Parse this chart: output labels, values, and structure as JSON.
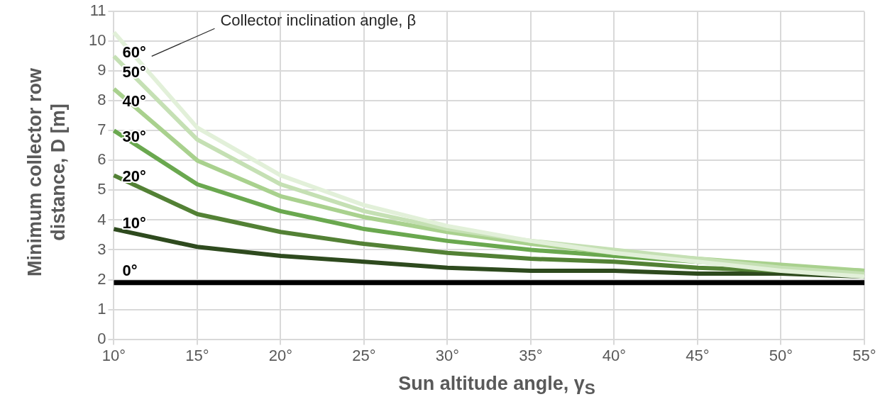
{
  "chart_data": {
    "type": "line",
    "xlabel": "Sun altitude angle, γ$_{S}$",
    "ylabel": "Minimum collector row distance, D [m]",
    "categories": [
      "10°",
      "15°",
      "20°",
      "25°",
      "30°",
      "35°",
      "40°",
      "45°",
      "50°",
      "55°"
    ],
    "ylim": [
      0,
      11
    ],
    "yticks": [
      0,
      1,
      2,
      3,
      4,
      5,
      6,
      7,
      8,
      9,
      10,
      11
    ],
    "grid": true,
    "legend": false,
    "marker": "none",
    "line_style": "solid",
    "annotations": [
      "Collector inclination angle, β"
    ],
    "series": [
      {
        "name": "0°",
        "color": "#000000",
        "values": [
          1.9,
          1.9,
          1.9,
          1.9,
          1.9,
          1.9,
          1.9,
          1.9,
          1.9,
          1.9
        ]
      },
      {
        "name": "10°",
        "color": "#2e4a1e",
        "values": [
          3.7,
          3.1,
          2.8,
          2.6,
          2.4,
          2.3,
          2.3,
          2.2,
          2.2,
          2.1
        ]
      },
      {
        "name": "20°",
        "color": "#538135",
        "values": [
          5.5,
          4.2,
          3.6,
          3.2,
          2.9,
          2.7,
          2.6,
          2.4,
          2.3,
          2.2
        ]
      },
      {
        "name": "30°",
        "color": "#6aa84f",
        "values": [
          7.0,
          5.2,
          4.3,
          3.7,
          3.3,
          3.0,
          2.8,
          2.6,
          2.4,
          2.3
        ]
      },
      {
        "name": "40°",
        "color": "#a9d18e",
        "values": [
          8.4,
          6.0,
          4.8,
          4.1,
          3.6,
          3.2,
          2.9,
          2.7,
          2.5,
          2.3
        ]
      },
      {
        "name": "50°",
        "color": "#c5e0b4",
        "values": [
          9.5,
          6.7,
          5.2,
          4.3,
          3.7,
          3.3,
          3.0,
          2.7,
          2.4,
          2.2
        ]
      },
      {
        "name": "60°",
        "color": "#e2f0d9",
        "values": [
          10.3,
          7.1,
          5.5,
          4.5,
          3.8,
          3.3,
          2.9,
          2.6,
          2.3,
          2.1
        ]
      }
    ]
  }
}
